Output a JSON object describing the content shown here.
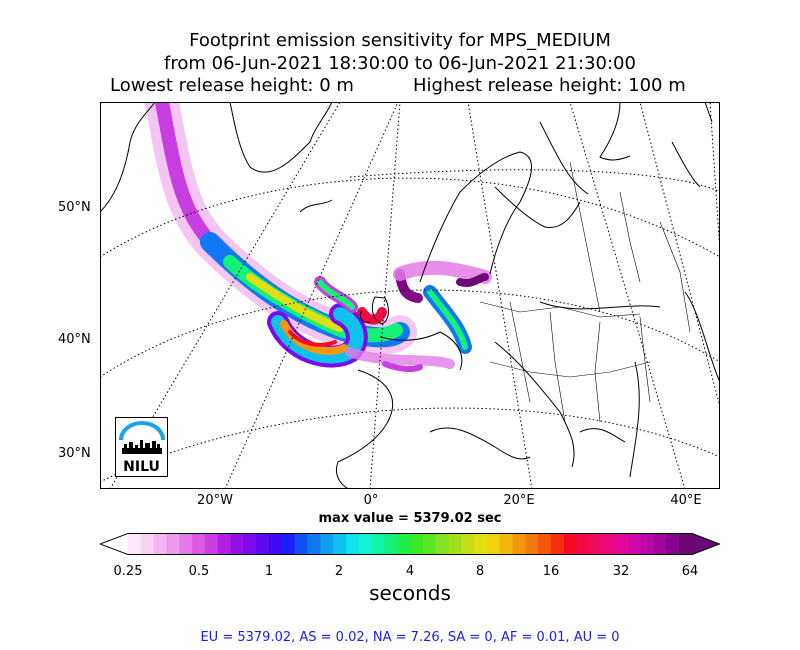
{
  "title": {
    "line1": "Footprint emission sensitivity for MPS_MEDIUM",
    "line2": "from 06-Jun-2021 18:30:00 to 06-Jun-2021 21:30:00",
    "lowest": "Lowest release height: 0 m",
    "highest": "Highest release height: 100 m"
  },
  "map": {
    "lat_labels": [
      "50°N",
      "40°N",
      "30°N"
    ],
    "lon_labels": [
      "20°W",
      "0°",
      "20°E",
      "40°E"
    ],
    "logo_text": "NILU",
    "max_value": "max value = 5379.02 sec"
  },
  "colorbar": {
    "tick_labels": [
      "0.25",
      "0.5",
      "1",
      "2",
      "4",
      "8",
      "16",
      "32",
      "64"
    ],
    "unit": "seconds",
    "colors": [
      "#fde9fb",
      "#f9d2f6",
      "#f3b6f1",
      "#ec98ec",
      "#e47ae7",
      "#d95be3",
      "#c83ee0",
      "#b021e0",
      "#9310e6",
      "#7a0bed",
      "#5c0af2",
      "#3b0cf5",
      "#1c1ff7",
      "#1550f5",
      "#1277f2",
      "#109ef0",
      "#0fc2ee",
      "#0fe3ee",
      "#10f2d6",
      "#12f2a8",
      "#14f078",
      "#1ded48",
      "#3ae92a",
      "#5ce524",
      "#80e220",
      "#a2e01c",
      "#c4df19",
      "#e2de15",
      "#f2d112",
      "#f4b50f",
      "#f5970d",
      "#f5780b",
      "#f5560a",
      "#f4300c",
      "#f30c24",
      "#f20a45",
      "#ef0a63",
      "#ea0a80",
      "#e0099a",
      "#cf08a8",
      "#b906a7",
      "#9f069a",
      "#83068a",
      "#6a0a75"
    ]
  },
  "stats": "EU = 5379.02,  AS = 0.02,  NA = 7.26,  SA = 0,  AF = 0.01,  AU = 0"
}
